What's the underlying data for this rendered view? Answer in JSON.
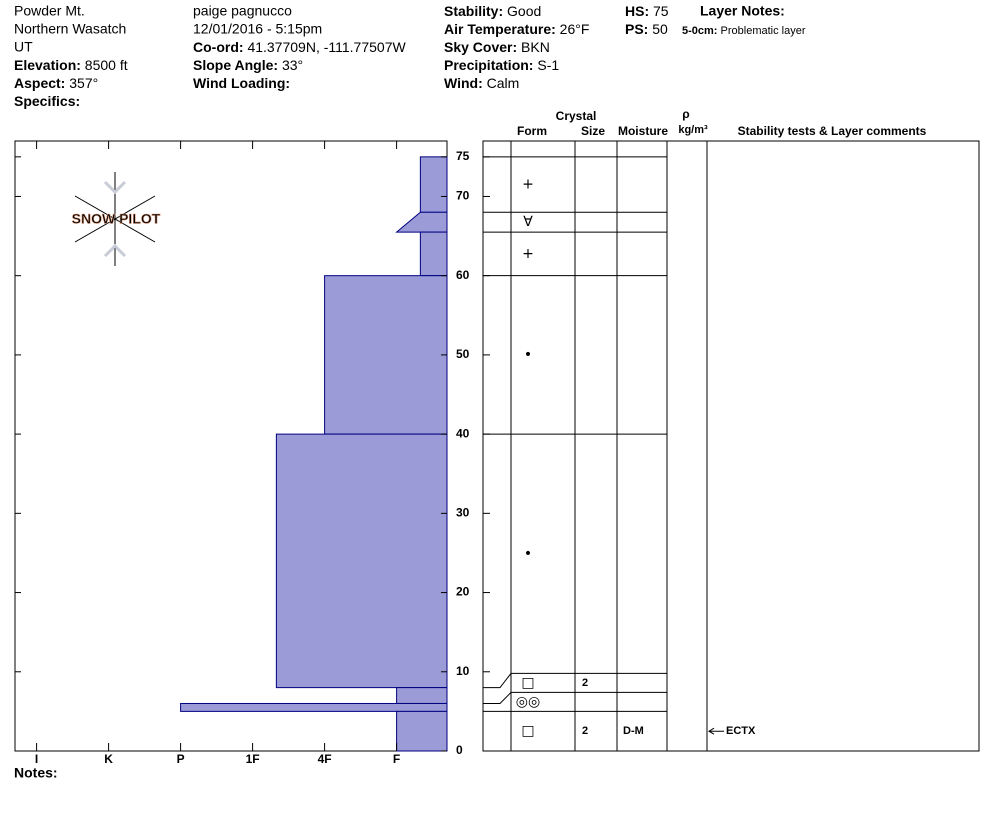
{
  "header": {
    "col1": [
      "Powder Mt.",
      "Northern Wasatch",
      "UT"
    ],
    "col1_fields": [
      {
        "label": "Elevation:",
        "value": "8500 ft"
      },
      {
        "label": "Aspect:",
        "value": "357°"
      },
      {
        "label": "Specifics:"
      }
    ],
    "col2": [
      "paige pagnucco",
      "12/01/2016 - 5:15pm"
    ],
    "col2_fields": [
      {
        "label": "Co-ord:",
        "value": "41.37709N, -111.77507W"
      },
      {
        "label": "Slope Angle:",
        "value": "33°"
      },
      {
        "label": "Wind Loading:"
      }
    ],
    "col3_fields": [
      {
        "label": "Stability:",
        "value": "Good"
      },
      {
        "label": "Air Temperature:",
        "value": "26°F"
      },
      {
        "label": "Sky Cover:",
        "value": "BKN"
      },
      {
        "label": "Precipitation:",
        "value": "S-1"
      },
      {
        "label": "Wind:",
        "value": "Calm"
      }
    ],
    "col4_fields": [
      {
        "label": "HS:",
        "value": "75"
      },
      {
        "label": "PS:",
        "value": "50"
      }
    ],
    "layer_notes_label": "Layer Notes:",
    "layer_note": {
      "label": "5-0cm:",
      "value": "Problematic layer"
    }
  },
  "chart_data": {
    "type": "snowprofile",
    "logo": "SNOW PILOT",
    "color": "#9b9bd7",
    "xlim": [
      6.3,
      0.3
    ],
    "xticks": [
      {
        "value": 6,
        "label": "I"
      },
      {
        "value": 5,
        "label": "K"
      },
      {
        "value": 4,
        "label": "P"
      },
      {
        "value": 3,
        "label": "1F"
      },
      {
        "value": 2,
        "label": "4F"
      },
      {
        "value": 1,
        "label": "F"
      }
    ],
    "ylim": [
      0,
      77
    ],
    "yticks": [
      0,
      10,
      20,
      30,
      40,
      50,
      60,
      70,
      75
    ],
    "columns": {
      "crystal": "Crystal",
      "form": "Form",
      "size": "Size",
      "moisture": "Moisture",
      "rho": "ρ",
      "density": "kg/m³",
      "comments": "Stability tests & Layer comments"
    },
    "layers": [
      {
        "top": 75,
        "bottom": 68,
        "hardness": 0.67,
        "form": "+"
      },
      {
        "top": 68,
        "bottom": 65.5,
        "hardness": 1,
        "hardness_top": 0.67,
        "form": "∀"
      },
      {
        "top": 65.5,
        "bottom": 60,
        "hardness": 0.67,
        "form": "+"
      },
      {
        "top": 60,
        "bottom": 40,
        "hardness": 2,
        "form": "•"
      },
      {
        "top": 40,
        "bottom": 8,
        "hardness": 2.67,
        "form": "•"
      },
      {
        "top": 8,
        "bottom": 6,
        "hardness": 1,
        "form": "□",
        "size": "2"
      },
      {
        "top": 6,
        "bottom": 5,
        "hardness": 4,
        "form": "◎◎"
      },
      {
        "top": 5,
        "bottom": 0,
        "hardness": 1,
        "form": "□",
        "size": "2",
        "moisture": "D-M",
        "test": "ECTX"
      }
    ]
  },
  "notes_label": "Notes:"
}
